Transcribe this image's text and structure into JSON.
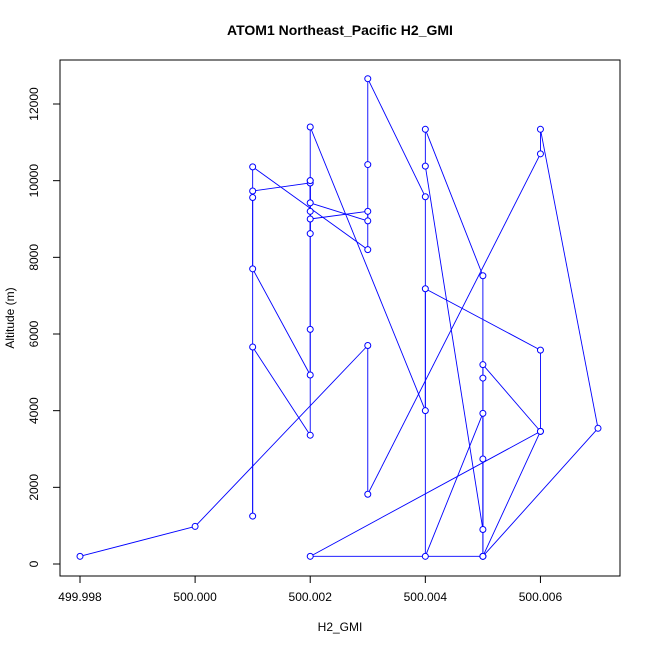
{
  "chart_data": {
    "type": "line",
    "title": "ATOM1 Northeast_Pacific H2_GMI",
    "xlabel": "H2_GMI",
    "ylabel": "Altitude (m)",
    "xlim": [
      499.998,
      500.007
    ],
    "ylim": [
      0,
      12700
    ],
    "xticks": [
      499.998,
      500.0,
      500.002,
      500.004,
      500.006
    ],
    "xtick_labels": [
      "499.998",
      "500.000",
      "500.002",
      "500.004",
      "500.006"
    ],
    "yticks": [
      0,
      2000,
      4000,
      6000,
      8000,
      10000,
      12000
    ],
    "ytick_labels": [
      "0",
      "2000",
      "4000",
      "6000",
      "8000",
      "10000",
      "12000"
    ],
    "marker": "open-circle",
    "grid": false,
    "legend": "none",
    "color": "#0000ff",
    "series": [
      {
        "x": [
          499.998,
          500.0,
          500.003,
          500.003,
          500.006,
          500.006,
          500.007,
          500.005,
          500.005,
          500.005,
          500.005,
          500.004,
          500.004,
          500.005,
          500.005,
          500.004,
          500.004,
          500.003,
          500.003,
          500.003,
          500.002,
          500.002,
          500.002,
          500.002,
          500.002,
          500.002,
          500.001,
          500.001,
          500.001,
          500.002,
          500.002,
          500.002,
          500.001,
          500.001,
          500.001,
          500.003,
          500.003,
          500.002,
          500.002,
          500.004,
          500.004,
          500.006,
          500.006,
          500.005,
          500.005,
          500.002,
          500.006,
          500.005
        ],
        "y": [
          200,
          980,
          5700,
          1820,
          10700,
          11340,
          3540,
          200,
          2740,
          4850,
          7520,
          11340,
          10380,
          900,
          3930,
          200,
          9580,
          12660,
          10420,
          8950,
          9420,
          9200,
          8620,
          10000,
          6120,
          4930,
          7700,
          9560,
          9730,
          9940,
          10000,
          3360,
          5660,
          1250,
          10360,
          8200,
          9200,
          9000,
          11400,
          4000,
          7180,
          5580,
          3460,
          5200,
          200,
          200,
          3460,
          200
        ]
      }
    ]
  }
}
